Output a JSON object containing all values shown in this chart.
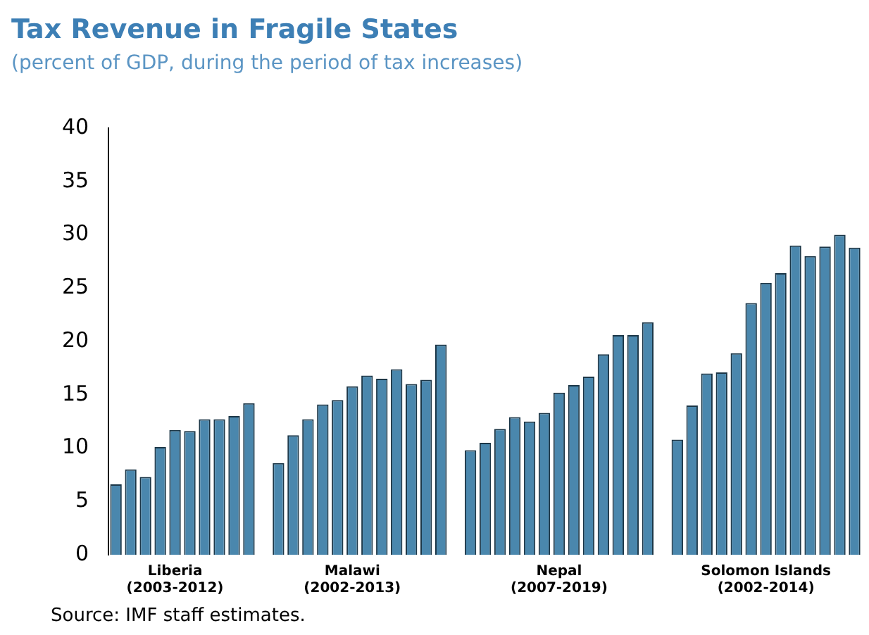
{
  "chart_data": {
    "type": "bar",
    "title": "Tax Revenue in Fragile States",
    "subtitle": "(percent of GDP, during the period of tax increases)",
    "categories": [
      null,
      null,
      null,
      null,
      "Liberia\n(2003-2012)",
      null,
      null,
      null,
      null,
      null,
      null,
      null,
      null,
      null,
      null,
      null,
      "Malawi\n(2002-2013)",
      null,
      null,
      null,
      null,
      null,
      null,
      null,
      null,
      null,
      null,
      null,
      null,
      null,
      "Nepal\n(2007-2019)",
      null,
      null,
      null,
      null,
      null,
      null,
      null,
      null,
      null,
      null,
      null,
      null,
      null,
      "Solomon Islands\n(2002-2014)",
      null,
      null,
      null,
      null,
      null,
      null
    ],
    "values": [
      6.6,
      8.0,
      7.3,
      10.1,
      11.7,
      11.6,
      12.7,
      12.7,
      13.0,
      14.2,
      null,
      8.6,
      11.2,
      12.7,
      14.1,
      14.5,
      15.8,
      16.8,
      16.5,
      17.4,
      16.0,
      16.4,
      19.7,
      null,
      9.8,
      10.5,
      11.8,
      12.9,
      12.5,
      13.3,
      15.2,
      15.9,
      16.7,
      18.8,
      20.6,
      20.6,
      21.8,
      null,
      10.8,
      14.0,
      17.0,
      17.1,
      18.9,
      23.6,
      25.5,
      26.4,
      29.0,
      28.0,
      28.9,
      30.0,
      28.8
    ],
    "color": "#4a87ad",
    "ylim": [
      0,
      40
    ],
    "yticks": [
      0,
      5,
      10,
      15,
      20,
      25,
      30,
      35,
      40
    ],
    "grid": false,
    "legend": false,
    "annotations": [
      "Source: IMF staff estimates."
    ]
  }
}
